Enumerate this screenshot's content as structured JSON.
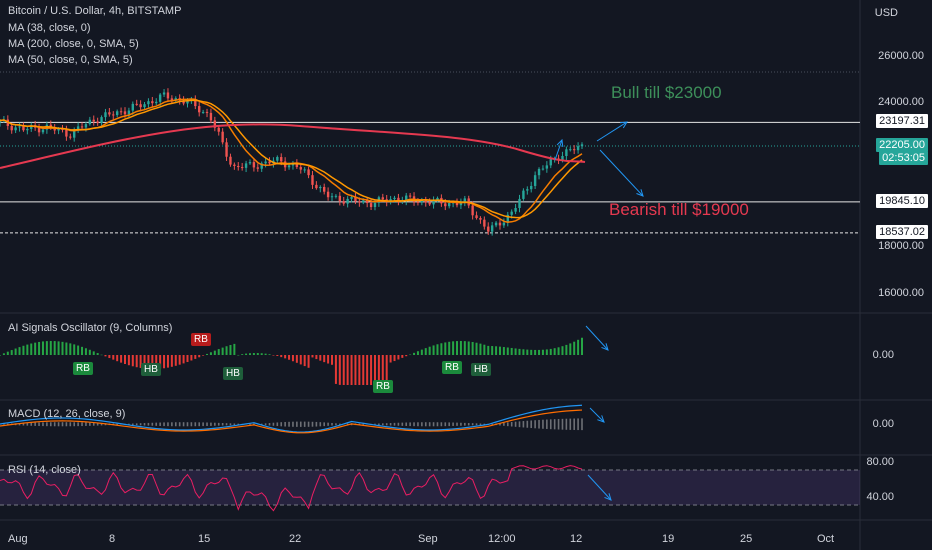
{
  "header": {
    "title": "Bitcoin / U.S. Dollar, 4h, BITSTAMP",
    "indicators": [
      "MA (38, close, 0)",
      "MA (200, close, 0, SMA, 5)",
      "MA (50, close, 0, SMA, 5)"
    ]
  },
  "axis": {
    "currency": "USD",
    "price_ticks": [
      "26000.00",
      "24000.00",
      "18000.00",
      "16000.00"
    ],
    "x_ticks": [
      "Aug",
      "8",
      "15",
      "22",
      "Sep",
      "12:00",
      "12",
      "19",
      "25",
      "Oct"
    ]
  },
  "levels": {
    "resistance": "23197.31",
    "current_price": "22205.00",
    "countdown": "02:53:05",
    "support": "19845.10",
    "low": "18537.02"
  },
  "annotations": {
    "bull": "Bull till $23000",
    "bear": "Bearish till $19000"
  },
  "panes": {
    "ai_title": "AI Signals Oscillator (9, Columns)",
    "ai_zero": "0.00",
    "macd_title": "MACD (12, 26, close, 9)",
    "macd_zero": "0.00",
    "rsi_title": "RSI (14, close)",
    "rsi_80": "80.00",
    "rsi_40": "40.00"
  },
  "signals": [
    "RB",
    "RB",
    "HB",
    "HB",
    "RB",
    "RB",
    "HB"
  ],
  "colors": {
    "bg": "#131722",
    "up": "#26a69a",
    "down": "#ef5350",
    "ma38": "#f57c00",
    "ma200": "#e53950",
    "ma50": "#ff9800",
    "bull_text": "#3d8f5a",
    "bear_text": "#e53950",
    "arrow": "#2196f3"
  },
  "chart_data": {
    "type": "candlestick",
    "title": "Bitcoin / U.S. Dollar, 4h, BITSTAMP",
    "x_labels": [
      "Aug",
      "8",
      "15",
      "22",
      "Sep",
      "12:00",
      "12",
      "19",
      "25",
      "Oct"
    ],
    "ylabel": "USD",
    "close_path": [
      23200,
      22900,
      23000,
      22700,
      23300,
      23600,
      23900,
      24300,
      24100,
      23500,
      21300,
      21400,
      21600,
      21200,
      20100,
      19900,
      19800,
      20000,
      19900,
      19800,
      19800,
      18600,
      19400,
      21000,
      21800,
      22205
    ],
    "horizontal_levels": [
      23197.31,
      19845.1,
      18537.02
    ],
    "current_price": 22205.0,
    "projections": {
      "bull_target": 23000,
      "bear_target": 19000
    },
    "rsi_levels": [
      80,
      40
    ]
  }
}
